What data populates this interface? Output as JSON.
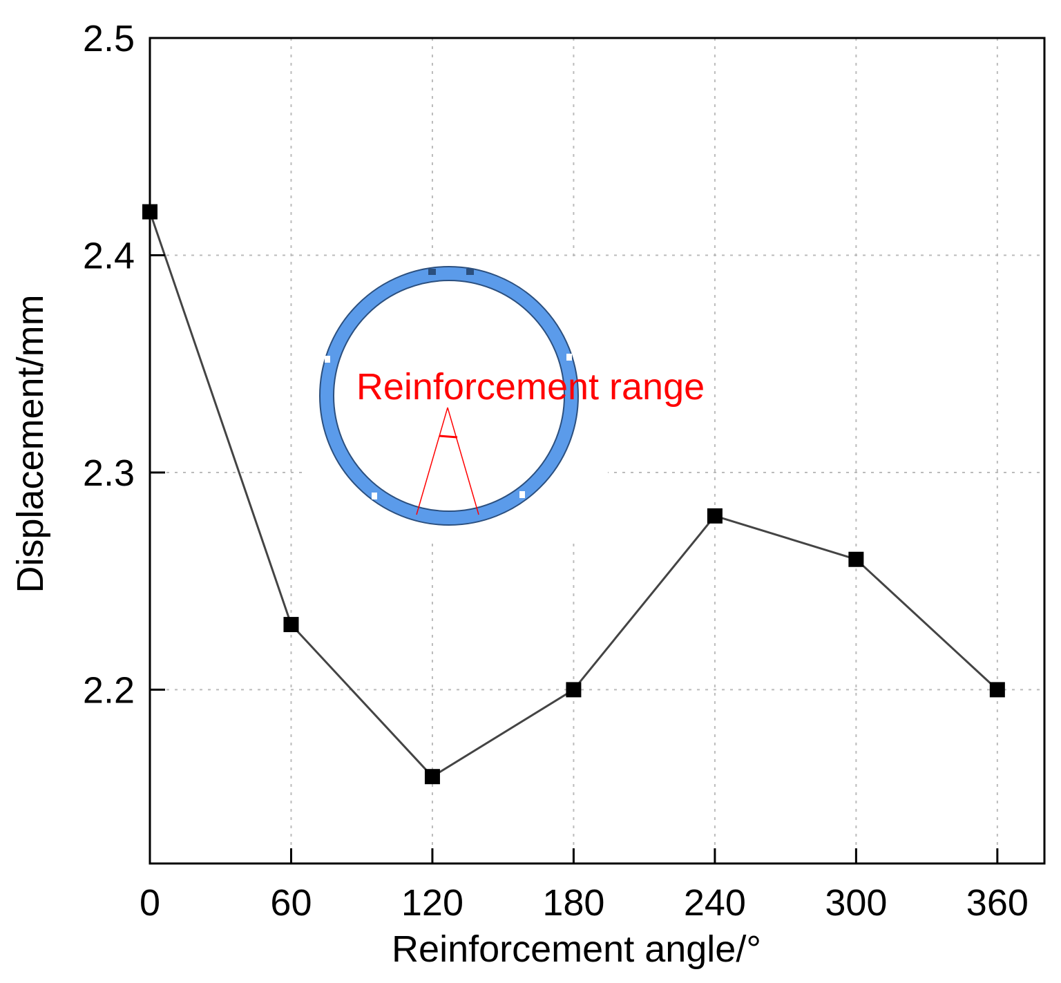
{
  "chart_data": {
    "type": "line",
    "title": "",
    "xlabel": "Reinforcement angle/°",
    "ylabel": "Displacement/mm",
    "x": [
      0,
      60,
      120,
      180,
      240,
      300,
      360
    ],
    "series": [
      {
        "name": "Displacement",
        "values": [
          2.42,
          2.23,
          2.16,
          2.2,
          2.28,
          2.26,
          2.2
        ]
      }
    ],
    "xlim": [
      0,
      380
    ],
    "ylim": [
      2.12,
      2.5
    ],
    "xticks": [
      "0",
      "60",
      "120",
      "180",
      "240",
      "300",
      "360"
    ],
    "yticks": [
      "2.2",
      "2.3",
      "2.4",
      "2.5"
    ],
    "grid": true,
    "inset": {
      "description": "ring-cross-section",
      "annotation": "Reinforcement range"
    },
    "colors": {
      "line": "#444444",
      "marker": "#000000",
      "grid": "#bbbbbb",
      "ring": "#5b9bea",
      "ring_edge": "#2b4f7e",
      "annotation": "#ff0000"
    }
  }
}
